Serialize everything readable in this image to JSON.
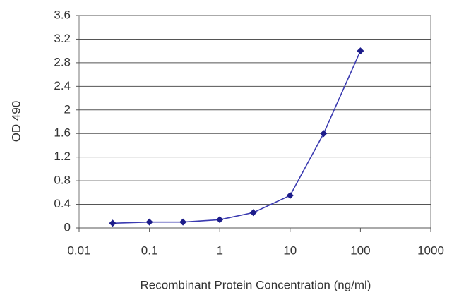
{
  "chart_data": {
    "type": "line",
    "xlabel": "Recombinant Protein Concentration (ng/ml)",
    "ylabel": "OD 490",
    "x": [
      0.03,
      0.1,
      0.3,
      1,
      3,
      10,
      30,
      100
    ],
    "values": [
      0.08,
      0.1,
      0.1,
      0.14,
      0.26,
      0.55,
      1.6,
      3.0
    ],
    "color": "#3a3ab0",
    "marker_color": "#1c1c8a",
    "xscale": "log",
    "xlim": [
      0.01,
      1000
    ],
    "xticks": [
      0.01,
      0.1,
      1,
      10,
      100,
      1000
    ],
    "ylim": [
      0,
      3.6
    ],
    "yticks": [
      0,
      0.4,
      0.8,
      1.2,
      1.6,
      2,
      2.4,
      2.8,
      3.2,
      3.6
    ],
    "grid": true
  }
}
